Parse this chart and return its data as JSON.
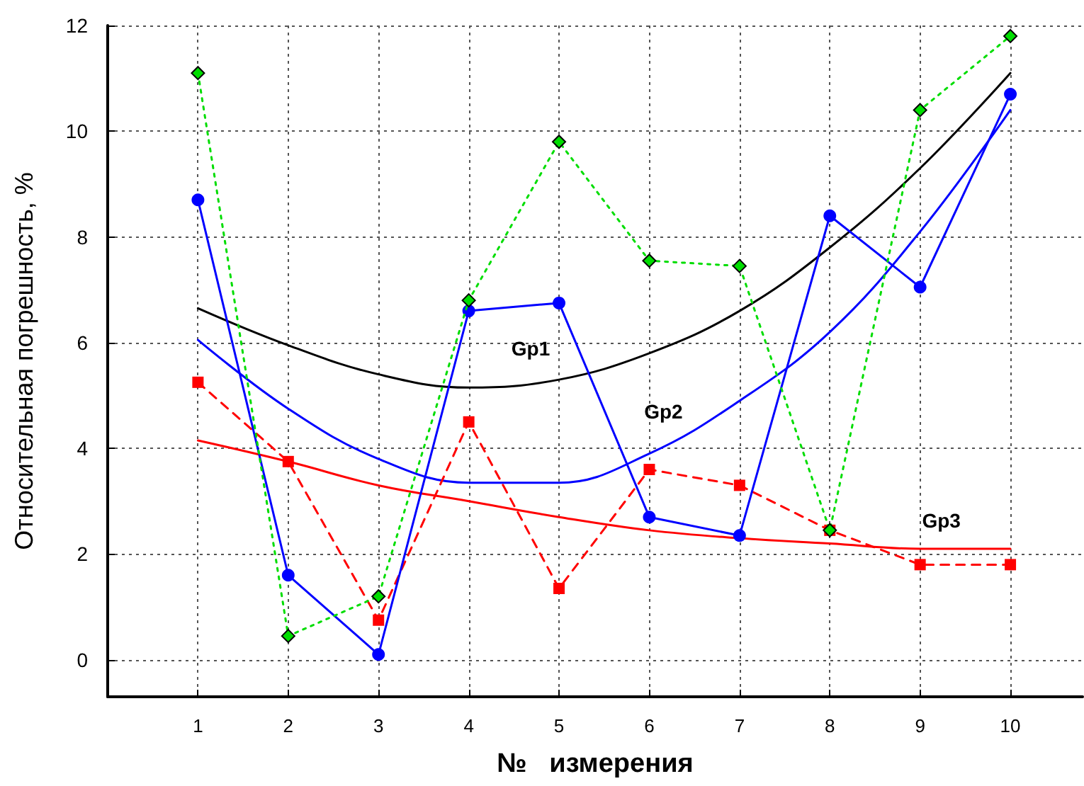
{
  "chart_data": {
    "type": "line",
    "xlabel": "№   измерения",
    "ylabel": "Относительная погрешность, %",
    "x": [
      1,
      2,
      3,
      4,
      5,
      6,
      7,
      8,
      9,
      10
    ],
    "series": [
      {
        "color": "#00dd00",
        "marker": "diamond",
        "line_style": "dotted",
        "values": [
          11.1,
          0.45,
          1.2,
          6.8,
          9.8,
          7.55,
          7.45,
          2.45,
          10.4,
          11.8
        ]
      },
      {
        "color": "#0000ff",
        "marker": "circle",
        "line_style": "solid",
        "values": [
          8.7,
          1.6,
          0.1,
          6.6,
          6.75,
          2.7,
          2.35,
          8.4,
          7.05,
          10.7
        ]
      },
      {
        "color": "#ff0000",
        "marker": "square",
        "line_style": "dashed",
        "values": [
          5.25,
          3.75,
          0.75,
          4.5,
          1.35,
          3.6,
          3.3,
          2.45,
          1.8,
          1.8
        ]
      },
      {
        "name": "Gp1",
        "color": "#000000",
        "marker": "none",
        "line_style": "solid",
        "values": [
          6.65,
          5.95,
          5.4,
          5.15,
          5.3,
          5.8,
          6.6,
          7.8,
          9.3,
          11.1
        ]
      },
      {
        "name": "Gp2",
        "color": "#0000ff",
        "marker": "none",
        "line_style": "solid",
        "values": [
          6.05,
          4.75,
          3.8,
          3.35,
          3.35,
          3.9,
          4.9,
          6.2,
          8.1,
          10.4
        ]
      },
      {
        "name": "Gp3",
        "color": "#ff0000",
        "marker": "none",
        "line_style": "solid",
        "values": [
          4.15,
          3.75,
          3.3,
          3.0,
          2.7,
          2.45,
          2.3,
          2.2,
          2.1,
          2.1
        ]
      }
    ],
    "xlim": [
      0,
      10.8
    ],
    "xticks": [
      1,
      2,
      3,
      4,
      5,
      6,
      7,
      8,
      9,
      10
    ],
    "ylim": [
      -0.7,
      12
    ],
    "yticks": [
      0,
      2,
      4,
      6,
      8,
      10,
      12
    ],
    "grid": true
  }
}
